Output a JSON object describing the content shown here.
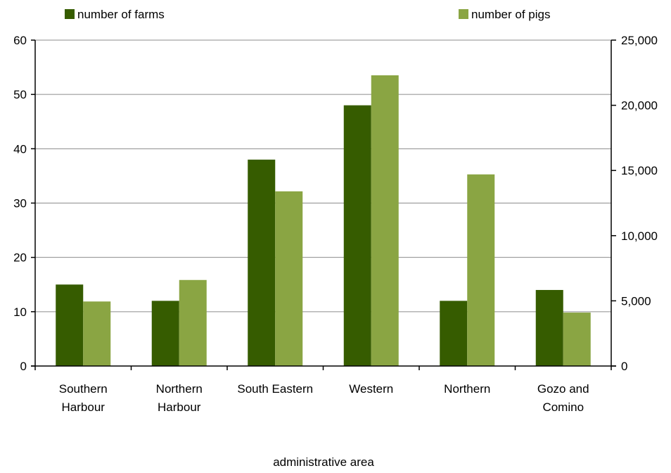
{
  "chart_data": {
    "type": "bar",
    "categories": [
      [
        "Southern",
        "Harbour"
      ],
      [
        "Northern",
        "Harbour"
      ],
      [
        "South Eastern"
      ],
      [
        "Western"
      ],
      [
        "Northern"
      ],
      [
        "Gozo and",
        "Comino"
      ]
    ],
    "series": [
      {
        "name": "number of farms",
        "axis": "left",
        "color": "#365c00",
        "values": [
          15,
          12,
          38,
          48,
          12,
          14
        ]
      },
      {
        "name": "number of pigs",
        "axis": "right",
        "color": "#8aa543",
        "values": [
          4950,
          6600,
          13400,
          22300,
          14700,
          4100
        ]
      }
    ],
    "title": "",
    "xlabel": "administrative area",
    "ylabel": "",
    "ylabel_right": "",
    "ylim": [
      0,
      60
    ],
    "ylim_right": [
      0,
      25000
    ],
    "yticks": [
      "0",
      "10",
      "20",
      "30",
      "40",
      "50",
      "60"
    ],
    "yticks_right": [
      "0",
      "5,000",
      "10,000",
      "15,000",
      "20,000",
      "25,000"
    ],
    "grid": true,
    "legend": "top"
  }
}
